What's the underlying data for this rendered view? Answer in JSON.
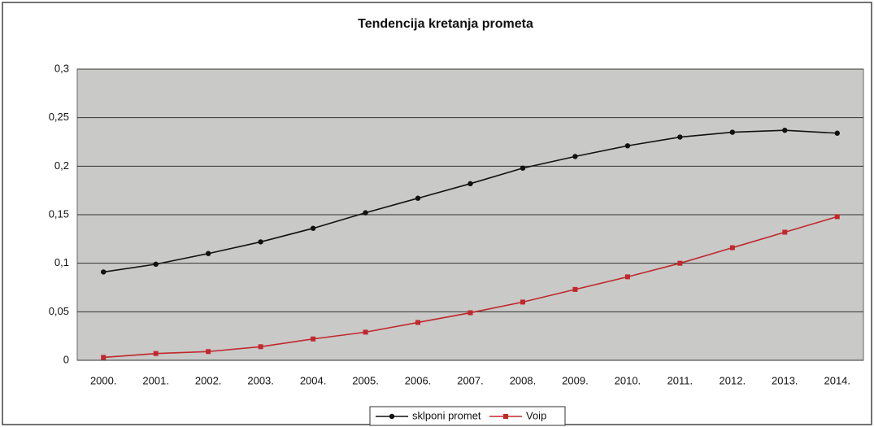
{
  "chart_data": {
    "type": "line",
    "title": "Tendencija kretanja prometa",
    "categories": [
      "2000.",
      "2001.",
      "2002.",
      "2003.",
      "2004.",
      "2005.",
      "2006.",
      "2007.",
      "2008.",
      "2009.",
      "2010.",
      "2011.",
      "2012.",
      "2013.",
      "2014."
    ],
    "series": [
      {
        "name": "sklponi promet",
        "color": "#111111",
        "values": [
          0.091,
          0.099,
          0.11,
          0.122,
          0.136,
          0.152,
          0.167,
          0.182,
          0.198,
          0.21,
          0.221,
          0.23,
          0.235,
          0.237,
          0.234
        ]
      },
      {
        "name": "Voip",
        "color": "#c0282d",
        "values": [
          0.003,
          0.007,
          0.009,
          0.014,
          0.022,
          0.029,
          0.039,
          0.049,
          0.06,
          0.073,
          0.086,
          0.1,
          0.116,
          0.132,
          0.148
        ]
      }
    ],
    "ylim": [
      0,
      0.3
    ],
    "yticks": [
      0,
      {
        "value": 0.05,
        "label": "0,05"
      },
      {
        "value": 0.1,
        "label": "0,1"
      },
      {
        "value": 0.15,
        "label": "0,15"
      },
      {
        "value": 0.2,
        "label": "0,2"
      },
      {
        "value": 0.25,
        "label": "0,25"
      },
      {
        "value": 0.3,
        "label": "0,3"
      }
    ],
    "grid": true,
    "legend": "bottom"
  }
}
